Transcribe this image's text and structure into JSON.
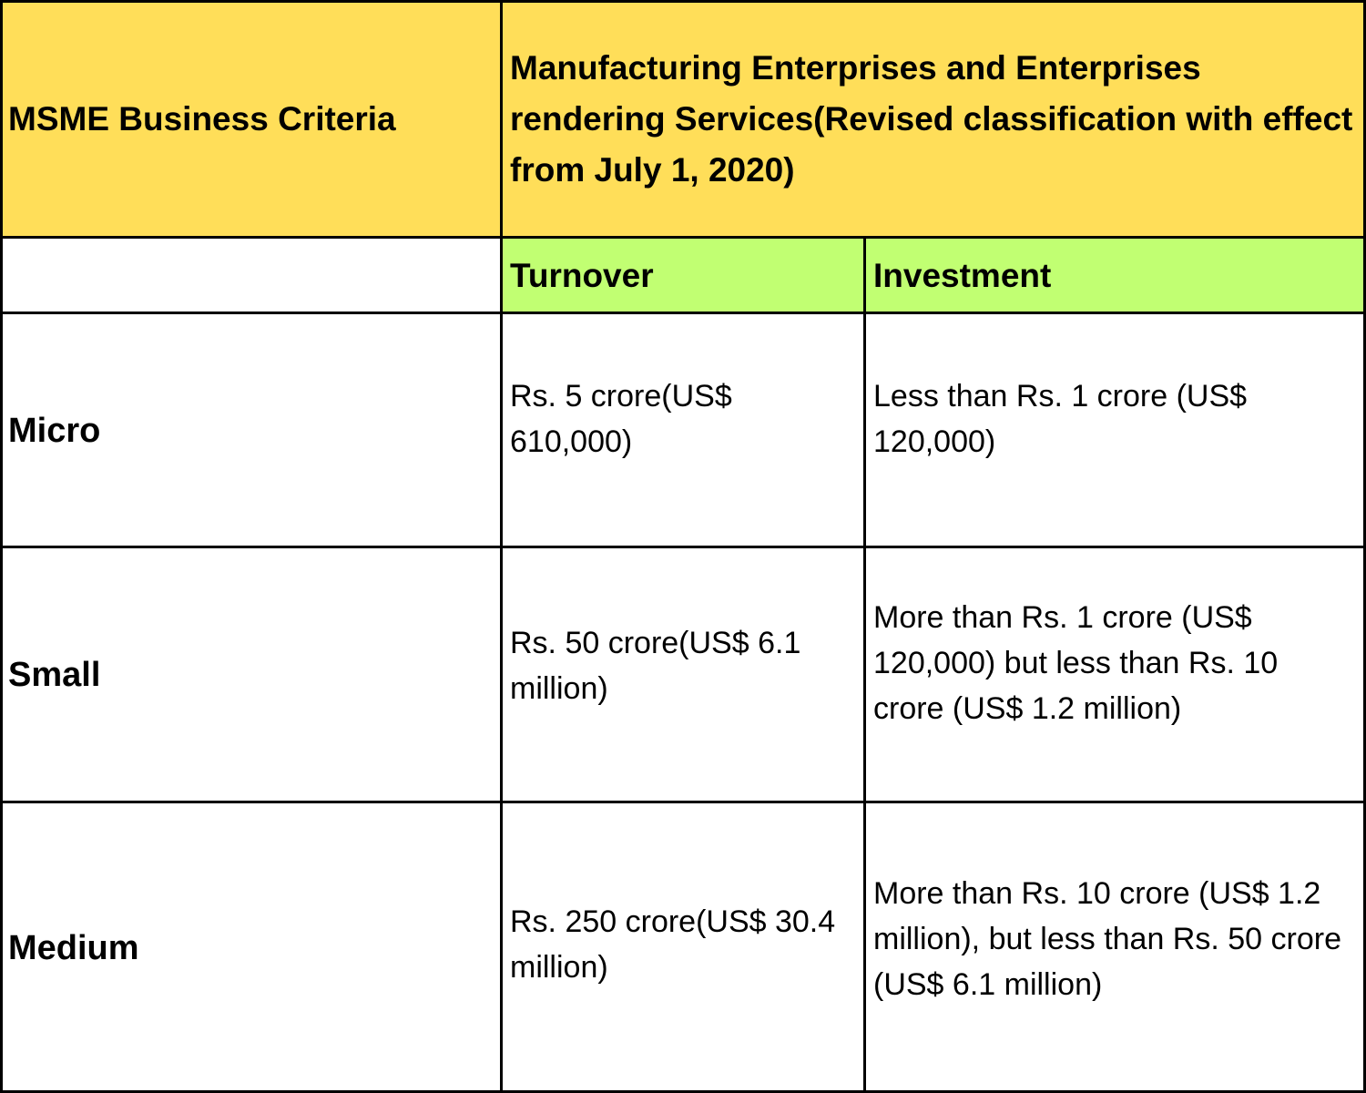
{
  "colors": {
    "header_bg": "#FFDE59",
    "subheader_bg": "#C1FF72",
    "body_bg": "#FFFFFF",
    "border": "#000000"
  },
  "table": {
    "criteria_header": "MSME Business Criteria",
    "group_header": "Manufacturing Enterprises and Enterprises rendering Services(Revised classification with effect from July 1, 2020)",
    "subheaders": {
      "turnover": "Turnover",
      "investment": "Investment"
    },
    "rows": [
      {
        "category": "Micro",
        "turnover": "Rs. 5 crore(US$ 610,000)",
        "investment": "Less than Rs. 1 crore (US$ 120,000)"
      },
      {
        "category": "Small",
        "turnover": "Rs. 50 crore(US$ 6.1 million)",
        "investment": "More than Rs. 1 crore (US$ 120,000) but less than Rs. 10 crore (US$ 1.2 million)"
      },
      {
        "category": "Medium",
        "turnover": "Rs. 250 crore(US$ 30.4 million)",
        "investment": "More than Rs. 10 crore (US$ 1.2 million), but less than Rs. 50 crore (US$ 6.1 million)"
      }
    ]
  }
}
